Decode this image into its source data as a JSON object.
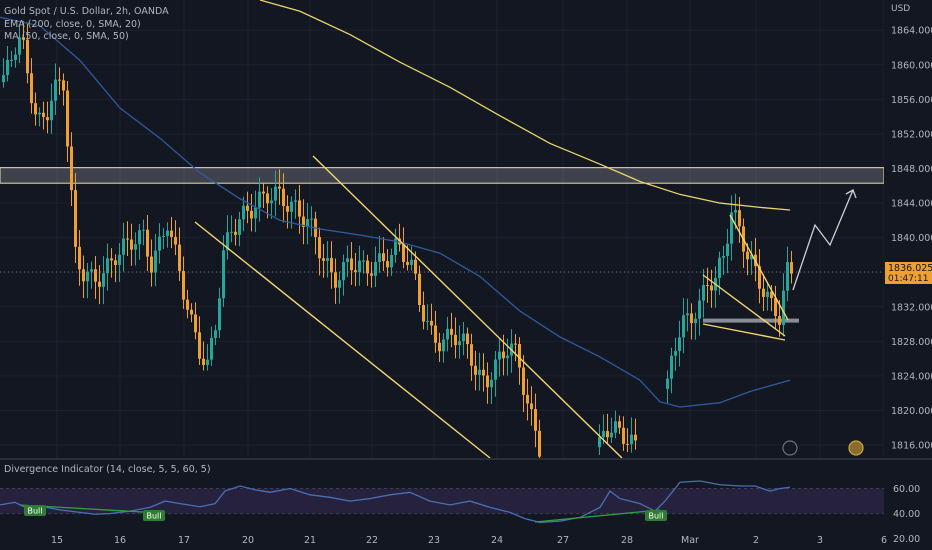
{
  "header": {
    "symbol_line": "Gold Spot / U.S. Dollar, 2h, OANDA",
    "ema_line": "EMA (200, close, 0, SMA, 20)",
    "ma_line": "MA (50, close, 0, SMA, 50)"
  },
  "price_axis": {
    "currency": "USD",
    "current_price": "1836.025",
    "countdown": "01:47:11"
  },
  "indicator": {
    "title": "Divergence Indicator (14, close, 5, 5, 60, 5)",
    "levels": [
      "60.00",
      "40.00",
      "20.00"
    ],
    "bull_label": "Bull"
  },
  "colors": {
    "background": "#131722",
    "bull_candle": "#26a69a",
    "bear_candle": "#f0a030",
    "ema": "#e8d56a",
    "ma": "#2e5b9a",
    "trendline": "#f5d770",
    "rsi": "#4a6fb5",
    "bull_badge": "#2e7d32"
  },
  "chart_data": [
    {
      "type": "candlestick",
      "symbol": "XAUUSD",
      "timeframe": "2h",
      "x_tick_labels": [
        "15",
        "16",
        "17",
        "20",
        "21",
        "22",
        "23",
        "24",
        "27",
        "28",
        "Mar",
        "2",
        "3",
        "6"
      ],
      "y_tick_values": [
        1864,
        1860,
        1856,
        1852,
        1848,
        1844,
        1840,
        1836,
        1832,
        1828,
        1824,
        1820,
        1816
      ],
      "ylim": [
        1814.5,
        1867.5
      ],
      "resistance_zone": [
        1846.3,
        1848.1
      ],
      "support_level": 1830.4,
      "last_price": 1836.025,
      "series": [
        {
          "name": "EMA (200, close, 0, SMA, 20)",
          "points": [
            [
              260,
              1867.5
            ],
            [
              300,
              1866.2
            ],
            [
              350,
              1863.5
            ],
            [
              400,
              1860.3
            ],
            [
              450,
              1857.4
            ],
            [
              500,
              1854.1
            ],
            [
              550,
              1850.9
            ],
            [
              600,
              1848.5
            ],
            [
              640,
              1846.5
            ],
            [
              680,
              1845.0
            ],
            [
              720,
              1844.0
            ],
            [
              760,
              1843.5
            ],
            [
              790,
              1843.2
            ]
          ]
        },
        {
          "name": "MA (50, close, 0, SMA, 50)",
          "points": [
            [
              0,
              1865.5
            ],
            [
              40,
              1864.5
            ],
            [
              80,
              1860.5
            ],
            [
              120,
              1855
            ],
            [
              160,
              1851.5
            ],
            [
              200,
              1847.5
            ],
            [
              240,
              1844.5
            ],
            [
              280,
              1842
            ],
            [
              320,
              1841
            ],
            [
              360,
              1840.3
            ],
            [
              400,
              1839.5
            ],
            [
              440,
              1838.2
            ],
            [
              480,
              1835.5
            ],
            [
              520,
              1831.5
            ],
            [
              560,
              1828.5
            ],
            [
              600,
              1826.2
            ],
            [
              640,
              1823.5
            ],
            [
              660,
              1821
            ],
            [
              680,
              1820.4
            ],
            [
              720,
              1820.9
            ],
            [
              750,
              1822.2
            ],
            [
              790,
              1823.5
            ]
          ]
        },
        {
          "name": "Divergence Indicator (14, close, 5, 5, 60, 5)",
          "ylim": [
            15,
            70
          ],
          "points": [
            [
              0,
              47
            ],
            [
              15,
              49
            ],
            [
              25,
              45
            ],
            [
              40,
              46
            ],
            [
              60,
              43
            ],
            [
              80,
              41
            ],
            [
              95,
              39.5
            ],
            [
              110,
              40
            ],
            [
              130,
              42
            ],
            [
              150,
              45
            ],
            [
              165,
              50
            ],
            [
              180,
              48
            ],
            [
              200,
              45.5
            ],
            [
              215,
              48
            ],
            [
              225,
              58
            ],
            [
              240,
              62
            ],
            [
              255,
              59
            ],
            [
              270,
              57
            ],
            [
              290,
              60
            ],
            [
              310,
              55
            ],
            [
              330,
              53
            ],
            [
              350,
              50
            ],
            [
              370,
              52
            ],
            [
              390,
              55
            ],
            [
              410,
              57
            ],
            [
              430,
              50
            ],
            [
              450,
              47
            ],
            [
              470,
              50
            ],
            [
              490,
              45
            ],
            [
              510,
              41
            ],
            [
              525,
              36
            ],
            [
              540,
              33
            ],
            [
              560,
              34
            ],
            [
              580,
              37
            ],
            [
              600,
              45
            ],
            [
              610,
              58
            ],
            [
              620,
              52
            ],
            [
              640,
              48
            ],
            [
              655,
              42
            ],
            [
              665,
              50
            ],
            [
              680,
              65
            ],
            [
              700,
              66
            ],
            [
              720,
              63
            ],
            [
              740,
              62
            ],
            [
              755,
              62
            ],
            [
              770,
              58
            ],
            [
              780,
              60
            ],
            [
              790,
              61
            ]
          ]
        }
      ]
    }
  ]
}
